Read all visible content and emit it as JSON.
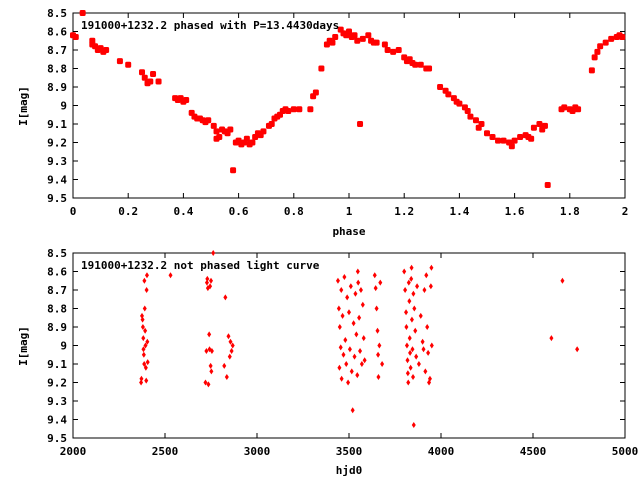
{
  "chart_data": [
    {
      "type": "scatter",
      "title": "191000+1232.2 phased with P=13.4430days",
      "xlabel": "phase",
      "ylabel": "I[mag]",
      "xlim": [
        0,
        2
      ],
      "ylim": [
        8.5,
        9.5
      ],
      "y_inverted": true,
      "x_ticks": [
        "0",
        "0.2",
        "0.4",
        "0.6",
        "0.8",
        "1",
        "1.2",
        "1.4",
        "1.6",
        "1.8",
        "2"
      ],
      "y_ticks": [
        "8.5",
        "8.6",
        "8.7",
        "8.8",
        "8.9",
        "9",
        "9.1",
        "9.2",
        "9.3",
        "9.4",
        "9.5"
      ],
      "grid": false,
      "marker_color": "#ff0000",
      "series": [
        {
          "points": [
            [
              0.0,
              8.62
            ],
            [
              0.01,
              8.63
            ],
            [
              0.035,
              8.5
            ],
            [
              0.07,
              8.65
            ],
            [
              0.07,
              8.67
            ],
            [
              0.08,
              8.68
            ],
            [
              0.09,
              8.7
            ],
            [
              0.1,
              8.69
            ],
            [
              0.11,
              8.71
            ],
            [
              0.12,
              8.7
            ],
            [
              0.17,
              8.76
            ],
            [
              0.2,
              8.78
            ],
            [
              0.25,
              8.82
            ],
            [
              0.26,
              8.85
            ],
            [
              0.27,
              8.88
            ],
            [
              0.28,
              8.87
            ],
            [
              0.29,
              8.83
            ],
            [
              0.31,
              8.87
            ],
            [
              0.37,
              8.96
            ],
            [
              0.38,
              8.97
            ],
            [
              0.39,
              8.96
            ],
            [
              0.4,
              8.98
            ],
            [
              0.41,
              8.97
            ],
            [
              0.43,
              9.04
            ],
            [
              0.44,
              9.06
            ],
            [
              0.45,
              9.07
            ],
            [
              0.46,
              9.07
            ],
            [
              0.47,
              9.08
            ],
            [
              0.48,
              9.09
            ],
            [
              0.49,
              9.08
            ],
            [
              0.51,
              9.11
            ],
            [
              0.52,
              9.14
            ],
            [
              0.52,
              9.18
            ],
            [
              0.53,
              9.17
            ],
            [
              0.54,
              9.13
            ],
            [
              0.55,
              9.14
            ],
            [
              0.56,
              9.15
            ],
            [
              0.57,
              9.13
            ],
            [
              0.58,
              9.35
            ],
            [
              0.59,
              9.2
            ],
            [
              0.6,
              9.19
            ],
            [
              0.61,
              9.21
            ],
            [
              0.62,
              9.2
            ],
            [
              0.63,
              9.18
            ],
            [
              0.64,
              9.21
            ],
            [
              0.65,
              9.2
            ],
            [
              0.66,
              9.17
            ],
            [
              0.67,
              9.15
            ],
            [
              0.68,
              9.16
            ],
            [
              0.69,
              9.14
            ],
            [
              0.71,
              9.11
            ],
            [
              0.72,
              9.1
            ],
            [
              0.73,
              9.07
            ],
            [
              0.74,
              9.06
            ],
            [
              0.75,
              9.05
            ],
            [
              0.76,
              9.03
            ],
            [
              0.77,
              9.02
            ],
            [
              0.78,
              9.03
            ],
            [
              0.8,
              9.02
            ],
            [
              0.82,
              9.02
            ],
            [
              0.86,
              9.02
            ],
            [
              0.87,
              8.95
            ],
            [
              0.88,
              8.93
            ],
            [
              0.9,
              8.8
            ],
            [
              0.92,
              8.67
            ],
            [
              0.93,
              8.65
            ],
            [
              0.94,
              8.66
            ],
            [
              0.95,
              8.63
            ],
            [
              0.97,
              8.59
            ],
            [
              0.98,
              8.61
            ],
            [
              0.99,
              8.62
            ],
            [
              1.0,
              8.6
            ],
            [
              1.01,
              8.63
            ],
            [
              1.02,
              8.62
            ],
            [
              1.03,
              8.65
            ],
            [
              1.04,
              9.1
            ],
            [
              1.05,
              8.64
            ],
            [
              1.07,
              8.62
            ],
            [
              1.08,
              8.65
            ],
            [
              1.09,
              8.66
            ],
            [
              1.1,
              8.66
            ],
            [
              1.13,
              8.67
            ],
            [
              1.14,
              8.7
            ],
            [
              1.16,
              8.71
            ],
            [
              1.18,
              8.7
            ],
            [
              1.2,
              8.74
            ],
            [
              1.21,
              8.76
            ],
            [
              1.22,
              8.75
            ],
            [
              1.23,
              8.77
            ],
            [
              1.24,
              8.78
            ],
            [
              1.26,
              8.78
            ],
            [
              1.28,
              8.8
            ],
            [
              1.29,
              8.8
            ],
            [
              1.33,
              8.9
            ],
            [
              1.35,
              8.92
            ],
            [
              1.36,
              8.94
            ],
            [
              1.38,
              8.96
            ],
            [
              1.39,
              8.98
            ],
            [
              1.4,
              8.99
            ],
            [
              1.42,
              9.01
            ],
            [
              1.43,
              9.03
            ],
            [
              1.44,
              9.06
            ],
            [
              1.46,
              9.08
            ],
            [
              1.47,
              9.12
            ],
            [
              1.48,
              9.1
            ],
            [
              1.5,
              9.15
            ],
            [
              1.52,
              9.17
            ],
            [
              1.54,
              9.19
            ],
            [
              1.56,
              9.19
            ],
            [
              1.58,
              9.2
            ],
            [
              1.59,
              9.22
            ],
            [
              1.6,
              9.19
            ],
            [
              1.62,
              9.17
            ],
            [
              1.64,
              9.16
            ],
            [
              1.65,
              9.17
            ],
            [
              1.66,
              9.18
            ],
            [
              1.67,
              9.12
            ],
            [
              1.69,
              9.1
            ],
            [
              1.7,
              9.13
            ],
            [
              1.71,
              9.11
            ],
            [
              1.72,
              9.43
            ],
            [
              1.77,
              9.02
            ],
            [
              1.78,
              9.01
            ],
            [
              1.8,
              9.02
            ],
            [
              1.81,
              9.03
            ],
            [
              1.82,
              9.01
            ],
            [
              1.83,
              9.02
            ],
            [
              1.88,
              8.81
            ],
            [
              1.89,
              8.74
            ],
            [
              1.9,
              8.71
            ],
            [
              1.91,
              8.68
            ],
            [
              1.93,
              8.66
            ],
            [
              1.95,
              8.64
            ],
            [
              1.97,
              8.63
            ],
            [
              1.98,
              8.62
            ],
            [
              1.99,
              8.63
            ]
          ]
        }
      ]
    },
    {
      "type": "scatter",
      "title": "191000+1232.2 not phased light curve",
      "xlabel": "hjd0",
      "ylabel": "I[mag]",
      "xlim": [
        2000,
        5000
      ],
      "ylim": [
        8.5,
        9.5
      ],
      "y_inverted": true,
      "x_ticks": [
        "2000",
        "2500",
        "3000",
        "3500",
        "4000",
        "4500",
        "5000"
      ],
      "y_ticks": [
        "8.5",
        "8.6",
        "8.7",
        "8.8",
        "8.9",
        "9",
        "9.1",
        "9.2",
        "9.3",
        "9.4",
        "9.5"
      ],
      "grid": false,
      "marker_color": "#ff0000",
      "series": [
        {
          "points": [
            [
              2370,
              9.2
            ],
            [
              2372,
              9.18
            ],
            [
              2375,
              8.84
            ],
            [
              2378,
              8.86
            ],
            [
              2380,
              8.9
            ],
            [
              2382,
              8.96
            ],
            [
              2383,
              9.02
            ],
            [
              2385,
              9.05
            ],
            [
              2387,
              9.1
            ],
            [
              2388,
              8.65
            ],
            [
              2390,
              8.8
            ],
            [
              2392,
              8.92
            ],
            [
              2394,
              9.0
            ],
            [
              2396,
              9.12
            ],
            [
              2398,
              9.19
            ],
            [
              2400,
              8.7
            ],
            [
              2402,
              8.62
            ],
            [
              2404,
              8.98
            ],
            [
              2406,
              9.09
            ],
            [
              2530,
              8.62
            ],
            [
              2720,
              9.2
            ],
            [
              2725,
              9.03
            ],
            [
              2728,
              8.66
            ],
            [
              2730,
              8.64
            ],
            [
              2733,
              8.69
            ],
            [
              2736,
              9.21
            ],
            [
              2740,
              8.94
            ],
            [
              2742,
              9.02
            ],
            [
              2745,
              8.68
            ],
            [
              2748,
              9.11
            ],
            [
              2750,
              8.65
            ],
            [
              2752,
              9.14
            ],
            [
              2755,
              9.03
            ],
            [
              2762,
              8.5
            ],
            [
              2822,
              9.11
            ],
            [
              2828,
              8.74
            ],
            [
              2836,
              9.17
            ],
            [
              2845,
              8.95
            ],
            [
              2852,
              9.06
            ],
            [
              2856,
              8.98
            ],
            [
              2862,
              9.03
            ],
            [
              2868,
              9.0
            ],
            [
              3440,
              8.65
            ],
            [
              3445,
              8.8
            ],
            [
              3448,
              9.12
            ],
            [
              3450,
              8.9
            ],
            [
              3455,
              9.01
            ],
            [
              3458,
              8.7
            ],
            [
              3460,
              9.18
            ],
            [
              3465,
              8.84
            ],
            [
              3470,
              9.05
            ],
            [
              3475,
              8.63
            ],
            [
              3480,
              8.97
            ],
            [
              3485,
              9.1
            ],
            [
              3490,
              8.74
            ],
            [
              3495,
              9.2
            ],
            [
              3500,
              8.82
            ],
            [
              3505,
              9.02
            ],
            [
              3510,
              8.68
            ],
            [
              3515,
              9.14
            ],
            [
              3520,
              9.35
            ],
            [
              3525,
              8.88
            ],
            [
              3530,
              9.06
            ],
            [
              3535,
              8.72
            ],
            [
              3540,
              8.94
            ],
            [
              3545,
              9.16
            ],
            [
              3548,
              8.6
            ],
            [
              3550,
              8.66
            ],
            [
              3555,
              8.85
            ],
            [
              3560,
              9.03
            ],
            [
              3565,
              8.7
            ],
            [
              3570,
              9.1
            ],
            [
              3575,
              8.78
            ],
            [
              3580,
              8.96
            ],
            [
              3585,
              9.08
            ],
            [
              3640,
              8.62
            ],
            [
              3645,
              8.69
            ],
            [
              3650,
              8.8
            ],
            [
              3655,
              8.92
            ],
            [
              3658,
              9.05
            ],
            [
              3660,
              9.17
            ],
            [
              3665,
              9.0
            ],
            [
              3670,
              8.66
            ],
            [
              3680,
              9.1
            ],
            [
              3800,
              8.6
            ],
            [
              3805,
              8.7
            ],
            [
              3810,
              8.82
            ],
            [
              3812,
              8.9
            ],
            [
              3815,
              9.0
            ],
            [
              3818,
              9.08
            ],
            [
              3820,
              9.15
            ],
            [
              3822,
              9.2
            ],
            [
              3825,
              8.66
            ],
            [
              3828,
              8.76
            ],
            [
              3830,
              8.96
            ],
            [
              3832,
              9.04
            ],
            [
              3835,
              9.12
            ],
            [
              3838,
              8.64
            ],
            [
              3840,
              8.58
            ],
            [
              3842,
              8.86
            ],
            [
              3845,
              9.02
            ],
            [
              3848,
              9.17
            ],
            [
              3850,
              8.72
            ],
            [
              3852,
              9.43
            ],
            [
              3855,
              8.8
            ],
            [
              3860,
              8.92
            ],
            [
              3865,
              9.06
            ],
            [
              3870,
              8.68
            ],
            [
              3880,
              9.1
            ],
            [
              3890,
              8.84
            ],
            [
              3900,
              8.98
            ],
            [
              3905,
              9.02
            ],
            [
              3910,
              8.7
            ],
            [
              3915,
              9.14
            ],
            [
              3920,
              8.62
            ],
            [
              3925,
              8.9
            ],
            [
              3930,
              9.04
            ],
            [
              3935,
              9.2
            ],
            [
              3940,
              9.18
            ],
            [
              3945,
              8.68
            ],
            [
              3948,
              8.58
            ],
            [
              3950,
              9.0
            ],
            [
              4600,
              8.96
            ],
            [
              4660,
              8.65
            ],
            [
              4740,
              9.02
            ]
          ]
        }
      ]
    }
  ]
}
